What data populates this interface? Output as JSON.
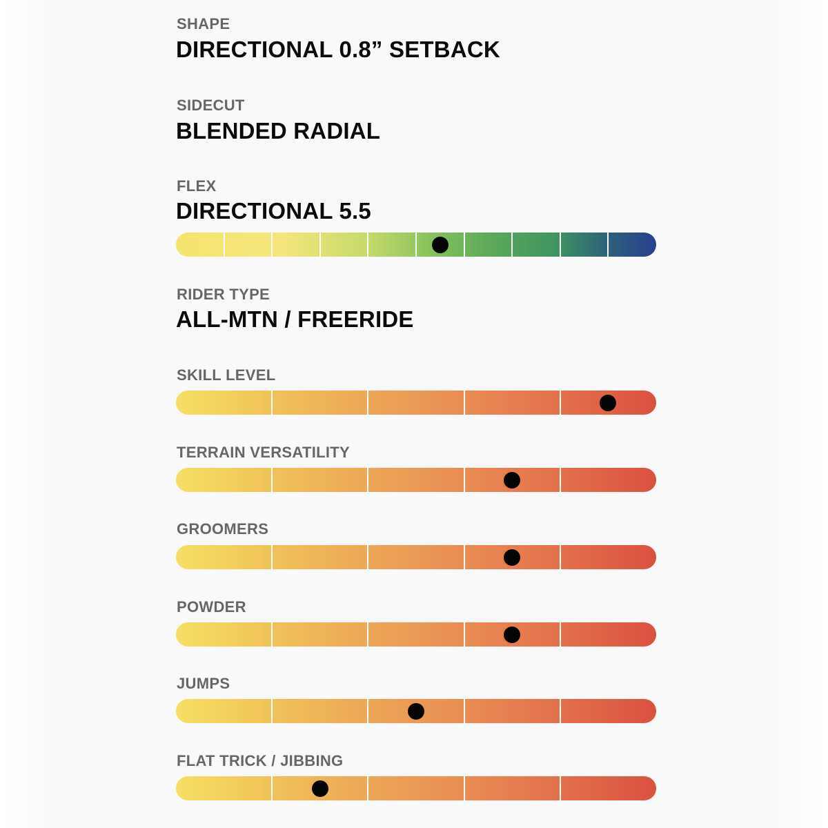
{
  "shape": {
    "label": "SHAPE",
    "value": "DIRECTIONAL 0.8” SETBACK"
  },
  "sidecut": {
    "label": "SIDECUT",
    "value": "BLENDED RADIAL"
  },
  "flex": {
    "label": "FLEX",
    "value": "DIRECTIONAL 5.5",
    "scale": {
      "segments": 10,
      "level": 5.5,
      "colors": [
        "#f6e470",
        "#8cc45e",
        "#3f9460",
        "#273f8e"
      ]
    }
  },
  "rider_type": {
    "label": "RIDER TYPE",
    "value": "ALL-MTN / FREERIDE"
  },
  "ratings": [
    {
      "label": "SKILL LEVEL",
      "level": 4.5,
      "segments": 5
    },
    {
      "label": "TERRAIN VERSATILITY",
      "level": 3.5,
      "segments": 5
    },
    {
      "label": "GROOMERS",
      "level": 3.5,
      "segments": 5
    },
    {
      "label": "POWDER",
      "level": 3.5,
      "segments": 5
    },
    {
      "label": "JUMPS",
      "level": 2.5,
      "segments": 5
    },
    {
      "label": "FLAT TRICK / JIBBING",
      "level": 1.5,
      "segments": 5
    }
  ],
  "colors": {
    "heat_start": "#f5df63",
    "heat_end": "#da5140",
    "label": "#666666",
    "value": "#0a0a0a",
    "marker": "#050505"
  }
}
